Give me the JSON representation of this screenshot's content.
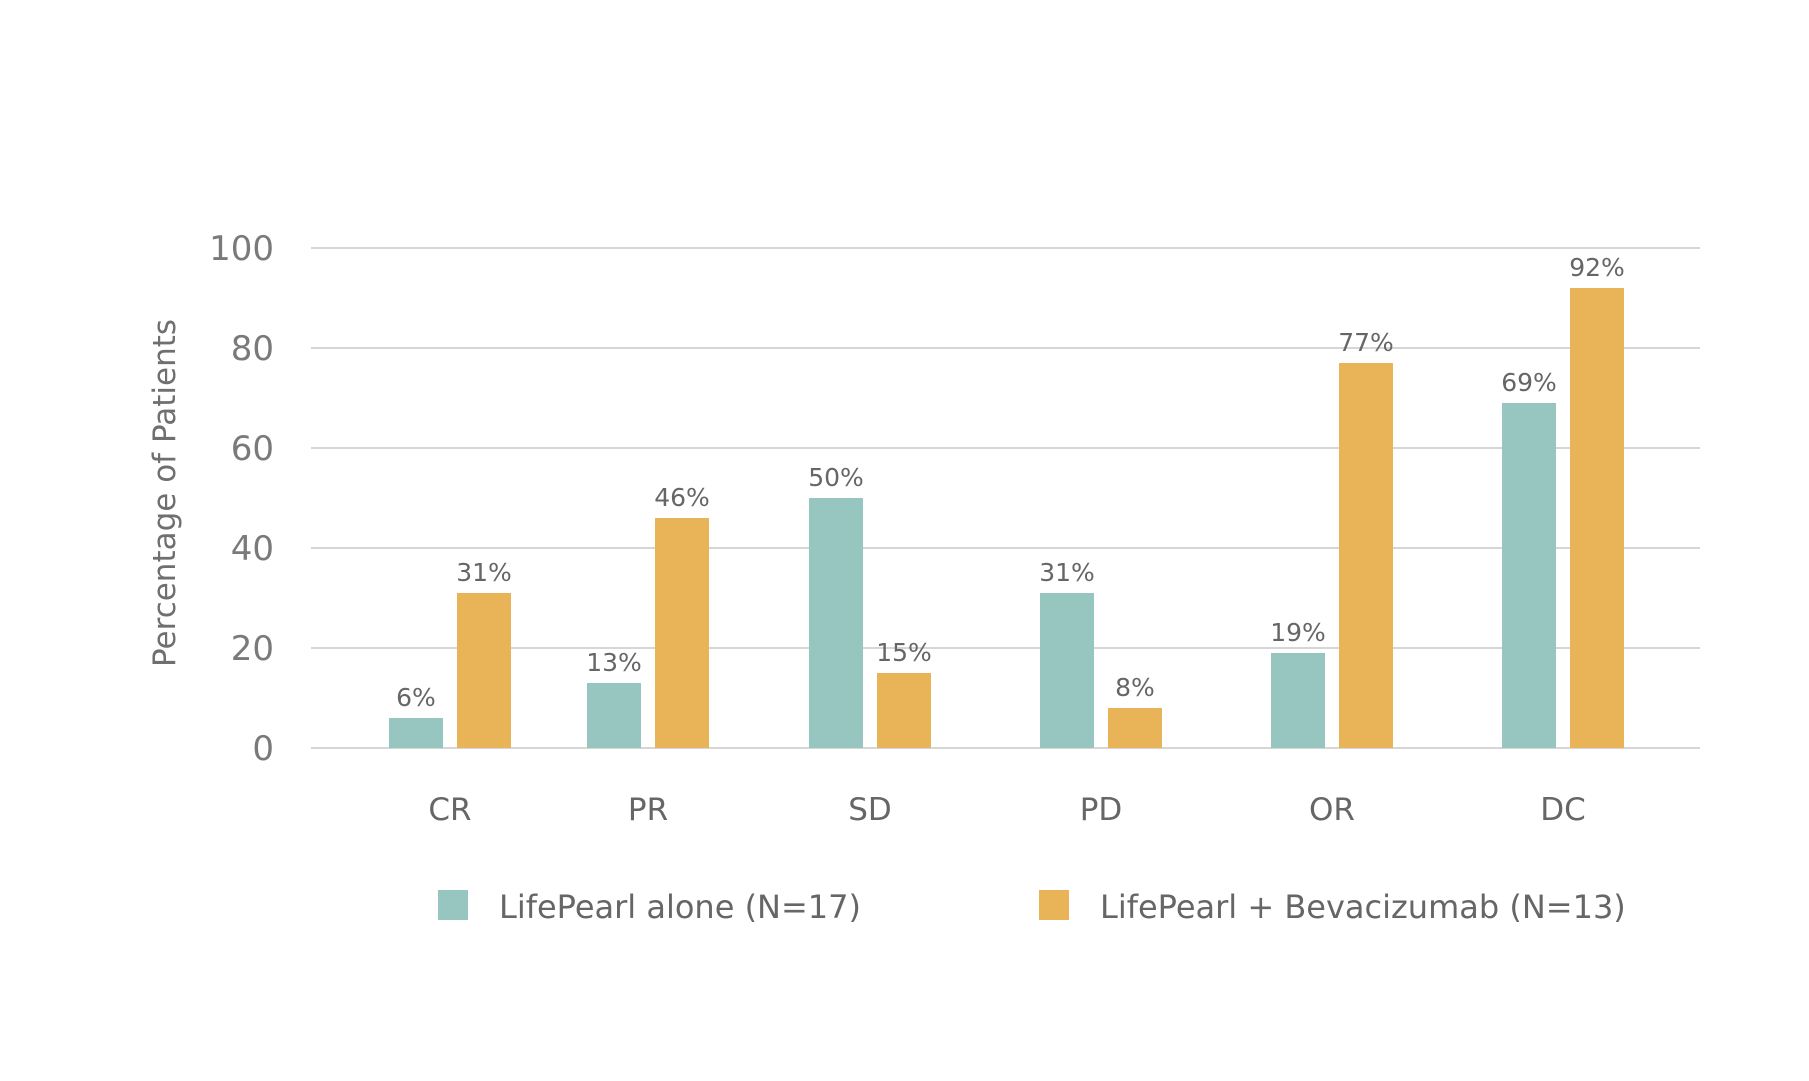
{
  "chart_data": {
    "type": "bar",
    "categories": [
      "CR",
      "PR",
      "SD",
      "PD",
      "OR",
      "DC"
    ],
    "series": [
      {
        "name": "LifePearl alone (N=17)",
        "values": [
          6,
          13,
          50,
          31,
          19,
          69
        ],
        "labels": [
          "6%",
          "13%",
          "50%",
          "31%",
          "19%",
          "69%"
        ],
        "color": "#97c5bf"
      },
      {
        "name": "LifePearl + Bevacizumab (N=13)",
        "values": [
          31,
          46,
          15,
          8,
          77,
          92
        ],
        "labels": [
          "31%",
          "46%",
          "15%",
          "8%",
          "77%",
          "92%"
        ],
        "color": "#e8b457"
      }
    ],
    "title": "",
    "xlabel": "",
    "ylabel": "Percentage of Patients",
    "ylim": [
      0,
      100
    ],
    "yticks": [
      "0",
      "20",
      "40",
      "60",
      "80",
      "100"
    ],
    "grid": true,
    "legend_position": "bottom"
  }
}
